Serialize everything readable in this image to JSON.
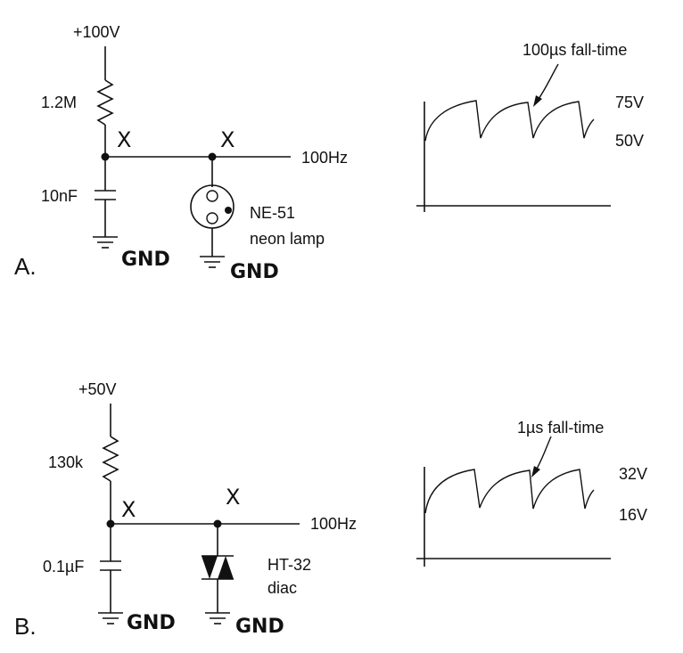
{
  "circuit_a": {
    "section_label": "A.",
    "supply": "+100V",
    "resistor": "1.2M",
    "capacitor": "10nF",
    "node_mark_1": "X",
    "node_mark_2": "X",
    "output": "100Hz",
    "device_name": "NE-51",
    "device_desc": "neon lamp",
    "gnd_1": "GND",
    "gnd_2": "GND",
    "scope": {
      "annotation": "100µs fall-time",
      "upper_level": "75V",
      "lower_level": "50V"
    }
  },
  "circuit_b": {
    "section_label": "B.",
    "supply": "+50V",
    "resistor": "130k",
    "capacitor": "0.1µF",
    "node_mark_1": "X",
    "node_mark_2": "X",
    "output": "100Hz",
    "device_name": "HT-32",
    "device_desc": "diac",
    "gnd_1": "GND",
    "gnd_2": "GND",
    "scope": {
      "annotation": "1µs fall-time",
      "upper_level": "32V",
      "lower_level": "16V"
    }
  }
}
